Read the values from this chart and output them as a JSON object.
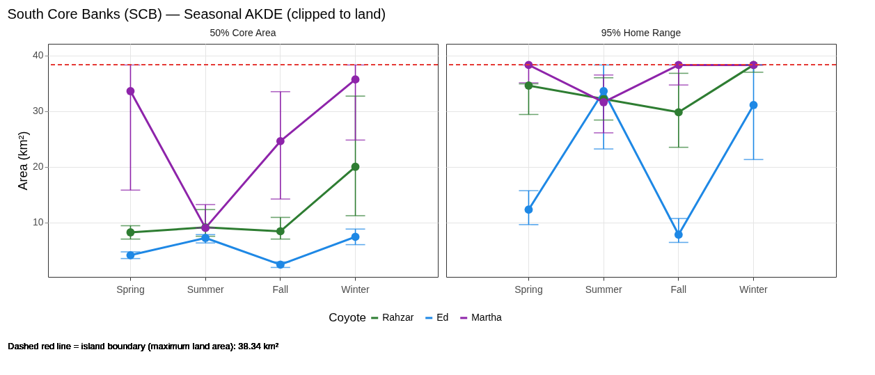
{
  "chart_data": [
    {
      "type": "line",
      "title": "South Core Banks (SCB) — Seasonal AKDE (clipped to land)",
      "subtitle": "50% Core Area",
      "ylabel": "Area (km²)",
      "legend_title": "Coyote",
      "legend": "bottom",
      "annotations": [
        "Dashed red line = island boundary (maximum land area): 38.34 km²"
      ],
      "categories": [
        "Spring",
        "Summer",
        "Fall",
        "Winter"
      ],
      "ylim": [
        0.2,
        42.1
      ],
      "yticks": [
        10,
        20,
        30,
        40
      ],
      "grid": true,
      "marker": "circle",
      "line_style": "solid",
      "ref_lines": [
        {
          "axis": "y",
          "value": 38.34,
          "color": "#e53935",
          "line_style": "dashed"
        }
      ],
      "series": [
        {
          "name": "Rahzar",
          "color": "#2e7d32",
          "values": [
            8.2,
            9.1,
            8.4,
            20.0
          ],
          "errors": [
            [
              7.0,
              9.4
            ],
            [
              7.5,
              12.3
            ],
            [
              7.0,
              10.9
            ],
            [
              11.2,
              32.7
            ]
          ]
        },
        {
          "name": "Ed",
          "color": "#1e88e5",
          "values": [
            4.1,
            7.2,
            2.4,
            7.4
          ],
          "errors": [
            [
              3.5,
              4.7
            ],
            [
              6.3,
              7.8
            ],
            [
              1.9,
              2.9
            ],
            [
              6.0,
              8.8
            ]
          ]
        },
        {
          "name": "Martha",
          "color": "#8e24aa",
          "values": [
            33.6,
            9.0,
            24.6,
            35.7
          ],
          "errors": [
            [
              15.8,
              38.3
            ],
            [
              9.0,
              13.2
            ],
            [
              14.2,
              33.5
            ],
            [
              24.8,
              38.3
            ]
          ]
        }
      ]
    },
    {
      "type": "line",
      "subtitle": "95% Home Range",
      "categories": [
        "Spring",
        "Summer",
        "Fall",
        "Winter"
      ],
      "ylim": [
        0.2,
        42.1
      ],
      "yticks": [
        10,
        20,
        30,
        40
      ],
      "tick_labels": "x",
      "grid": true,
      "marker": "circle",
      "line_style": "solid",
      "ref_lines": [
        {
          "axis": "y",
          "value": 38.34,
          "color": "#e53935",
          "line_style": "dashed"
        }
      ],
      "series": [
        {
          "color": "#2e7d32",
          "values": [
            34.6,
            32.2,
            29.8,
            38.3
          ],
          "errors": [
            [
              29.4,
              34.9
            ],
            [
              28.4,
              36.0
            ],
            [
              23.5,
              36.8
            ],
            [
              37.0,
              38.3
            ]
          ]
        },
        {
          "color": "#1e88e5",
          "values": [
            12.3,
            33.6,
            7.8,
            31.1
          ],
          "errors": [
            [
              9.6,
              15.7
            ],
            [
              23.2,
              38.3
            ],
            [
              6.4,
              10.7
            ],
            [
              21.3,
              38.3
            ]
          ]
        },
        {
          "color": "#8e24aa",
          "values": [
            38.3,
            31.6,
            38.3,
            38.3
          ],
          "errors": [
            [
              35.1,
              38.3
            ],
            [
              26.1,
              36.5
            ],
            [
              34.7,
              38.3
            ],
            [
              38.3,
              38.3
            ]
          ]
        }
      ]
    }
  ]
}
